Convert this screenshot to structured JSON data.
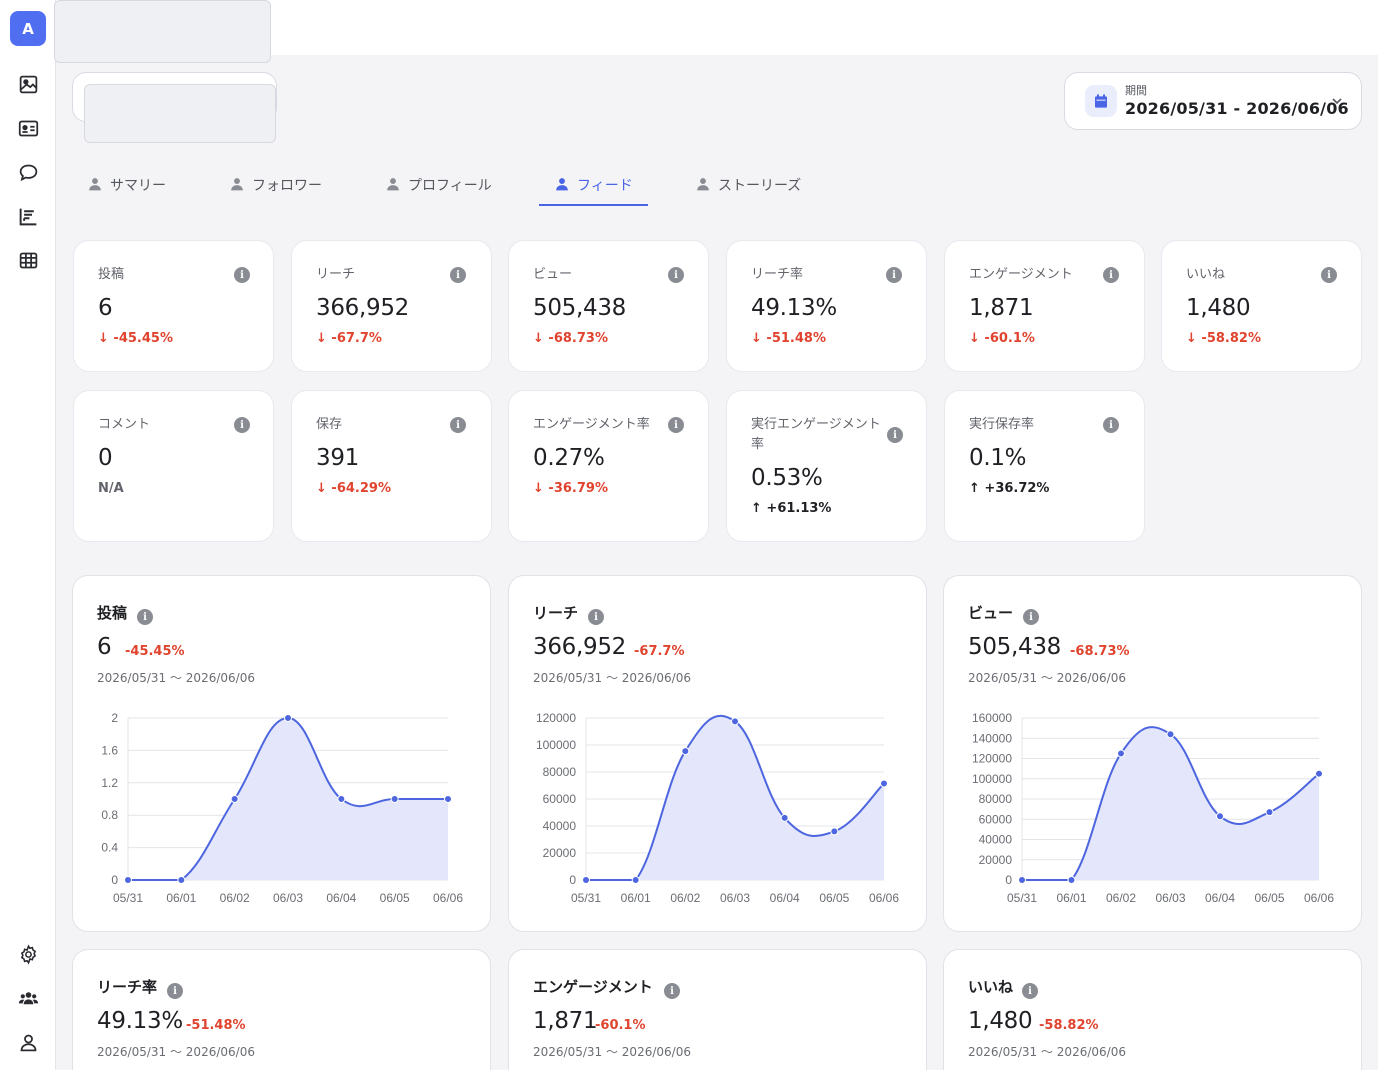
{
  "app": {
    "logo_letter": "A"
  },
  "sidebar": {
    "top_items": [
      {
        "name": "image-icon"
      },
      {
        "name": "id-card-icon"
      },
      {
        "name": "chat-bubble-icon"
      },
      {
        "name": "bar-chart-icon"
      },
      {
        "name": "table-grid-icon"
      }
    ],
    "bottom_items": [
      {
        "name": "gear-icon"
      },
      {
        "name": "users-icon"
      },
      {
        "name": "user-icon"
      }
    ]
  },
  "date_range": {
    "label": "期間",
    "value": "2026/05/31 - 2026/06/06",
    "icon": "calendar-icon"
  },
  "tabs": [
    {
      "label": "サマリー",
      "active": false
    },
    {
      "label": "フォロワー",
      "active": false
    },
    {
      "label": "プロフィール",
      "active": false
    },
    {
      "label": "フィード",
      "active": true
    },
    {
      "label": "ストーリーズ",
      "active": false
    }
  ],
  "stats": [
    {
      "title": "投稿",
      "value": "6",
      "change": "-45.45%",
      "direction": "down"
    },
    {
      "title": "リーチ",
      "value": "366,952",
      "change": "-67.7%",
      "direction": "down"
    },
    {
      "title": "ビュー",
      "value": "505,438",
      "change": "-68.73%",
      "direction": "down"
    },
    {
      "title": "リーチ率",
      "value": "49.13%",
      "change": "-51.48%",
      "direction": "down"
    },
    {
      "title": "エンゲージメント",
      "value": "1,871",
      "change": "-60.1%",
      "direction": "down"
    },
    {
      "title": "いいね",
      "value": "1,480",
      "change": "-58.82%",
      "direction": "down"
    },
    {
      "title": "コメント",
      "value": "0",
      "change": "N/A",
      "direction": "none"
    },
    {
      "title": "保存",
      "value": "391",
      "change": "-64.29%",
      "direction": "down"
    },
    {
      "title": "エンゲージメント率",
      "value": "0.27%",
      "change": "-36.79%",
      "direction": "down"
    },
    {
      "title": "実行エンゲージメント率",
      "value": "0.53%",
      "change": "+61.13%",
      "direction": "up"
    },
    {
      "title": "実行保存率",
      "value": "0.1%",
      "change": "+36.72%",
      "direction": "up"
    }
  ],
  "charts": [
    {
      "title": "投稿",
      "value": "6",
      "change": "-45.45%",
      "range": "2026/05/31 〜 2026/06/06"
    },
    {
      "title": "リーチ",
      "value": "366,952",
      "change": "-67.7%",
      "range": "2026/05/31 〜 2026/06/06"
    },
    {
      "title": "ビュー",
      "value": "505,438",
      "change": "-68.73%",
      "range": "2026/05/31 〜 2026/06/06"
    },
    {
      "title": "リーチ率",
      "value": "49.13%",
      "change": "-51.48%",
      "range": "2026/05/31 〜 2026/06/06"
    },
    {
      "title": "エンゲージメント",
      "value": "1,871",
      "change": "-60.1%",
      "range": "2026/05/31 〜 2026/06/06"
    },
    {
      "title": "いいね",
      "value": "1,480",
      "change": "-58.82%",
      "range": "2026/05/31 〜 2026/06/06"
    }
  ],
  "chart_data": [
    {
      "type": "area",
      "title": "投稿",
      "categories": [
        "05/31",
        "06/01",
        "06/02",
        "06/03",
        "06/04",
        "06/05",
        "06/06"
      ],
      "values": [
        0,
        0,
        1,
        2,
        1,
        1,
        1
      ],
      "yticks": [
        "0",
        "0.4",
        "0.8",
        "1.2",
        "1.6",
        "2"
      ],
      "ylim": [
        0,
        2
      ],
      "grid": true,
      "color": "#4d66e0"
    },
    {
      "type": "area",
      "title": "リーチ",
      "categories": [
        "05/31",
        "06/01",
        "06/02",
        "06/03",
        "06/04",
        "06/05",
        "06/06"
      ],
      "values": [
        0,
        0,
        95500,
        117500,
        46000,
        36000,
        71500
      ],
      "yticks": [
        "0",
        "20000",
        "40000",
        "60000",
        "80000",
        "100000",
        "120000"
      ],
      "ylim": [
        0,
        120000
      ],
      "grid": true,
      "color": "#4d66e0"
    },
    {
      "type": "area",
      "title": "ビュー",
      "categories": [
        "05/31",
        "06/01",
        "06/02",
        "06/03",
        "06/04",
        "06/05",
        "06/06"
      ],
      "values": [
        0,
        0,
        125000,
        144000,
        63000,
        67000,
        105000
      ],
      "yticks": [
        "0",
        "20000",
        "40000",
        "60000",
        "80000",
        "100000",
        "120000",
        "140000",
        "160000"
      ],
      "ylim": [
        0,
        160000
      ],
      "grid": true,
      "color": "#4d66e0"
    }
  ]
}
